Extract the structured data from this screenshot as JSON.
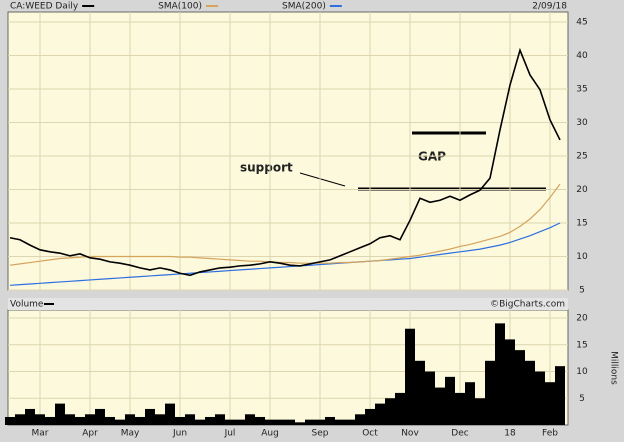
{
  "chart_data": {
    "type": "line",
    "date": "2/09/18",
    "credit": "©BigCharts.com",
    "annotations": [
      "support",
      "GAP"
    ],
    "categories": [
      null,
      null,
      null,
      "Mar",
      null,
      null,
      null,
      null,
      "Apr",
      null,
      null,
      null,
      "May",
      null,
      null,
      null,
      null,
      "Jun",
      null,
      null,
      null,
      null,
      "Jul",
      null,
      null,
      null,
      "Aug",
      null,
      null,
      null,
      null,
      "Sep",
      null,
      null,
      null,
      null,
      "Oct",
      null,
      null,
      null,
      "Nov",
      null,
      null,
      null,
      null,
      "Dec",
      null,
      null,
      null,
      null,
      "18",
      null,
      null,
      null,
      "Feb",
      null
    ],
    "ylim": [
      5,
      46.5
    ],
    "yticks": [
      5,
      10,
      15,
      20,
      25,
      30,
      35,
      40,
      45
    ],
    "grid": true,
    "series": [
      {
        "name": "CA:WEED Daily",
        "color": "#000000",
        "values": [
          12.8,
          12.5,
          11.7,
          11,
          10.7,
          10.5,
          10.1,
          10.4,
          9.8,
          9.6,
          9.2,
          9.0,
          8.7,
          8.3,
          8.0,
          8.3,
          8.0,
          7.5,
          7.2,
          7.7,
          8.0,
          8.3,
          8.4,
          8.6,
          8.7,
          8.9,
          9.2,
          9.0,
          8.7,
          8.6,
          8.9,
          9.2,
          9.5,
          10.1,
          10.7,
          11.3,
          11.9,
          12.8,
          13.1,
          12.5,
          15.4,
          18.7,
          18.1,
          18.4,
          19.0,
          18.4,
          19.2,
          19.9,
          21.7,
          28.9,
          35.6,
          40.8,
          37.1,
          34.9,
          30.4,
          27.4
        ]
      },
      {
        "name": "SMA(100)",
        "color": "#d4a35c",
        "values": [
          8.7,
          8.9,
          9.1,
          9.3,
          9.5,
          9.7,
          9.8,
          9.9,
          10,
          10,
          10,
          10,
          10,
          10,
          10,
          10,
          10,
          9.9,
          9.9,
          9.8,
          9.7,
          9.6,
          9.5,
          9.4,
          9.3,
          9.3,
          9.2,
          9.1,
          9.1,
          9.0,
          9.0,
          9.0,
          9.0,
          9.1,
          9.1,
          9.2,
          9.3,
          9.4,
          9.6,
          9.8,
          10,
          10.2,
          10.5,
          10.8,
          11.1,
          11.5,
          11.8,
          12.2,
          12.6,
          13,
          13.6,
          14.5,
          15.6,
          17,
          18.8,
          20.8
        ]
      },
      {
        "name": "SMA(200)",
        "color": "#2f6fe0",
        "values": [
          5.7,
          5.8,
          5.9,
          6.0,
          6.1,
          6.2,
          6.3,
          6.4,
          6.5,
          6.6,
          6.7,
          6.8,
          6.9,
          7.0,
          7.1,
          7.2,
          7.3,
          7.4,
          7.5,
          7.6,
          7.7,
          7.8,
          7.9,
          8.0,
          8.1,
          8.2,
          8.3,
          8.4,
          8.5,
          8.6,
          8.7,
          8.8,
          8.9,
          9.0,
          9.1,
          9.2,
          9.3,
          9.4,
          9.5,
          9.6,
          9.7,
          9.9,
          10.1,
          10.3,
          10.5,
          10.7,
          10.9,
          11.1,
          11.4,
          11.7,
          12.1,
          12.6,
          13.1,
          13.7,
          14.3,
          15
        ]
      }
    ],
    "volume": {
      "title": "Volume",
      "y_label": "Millions",
      "color": "#000000",
      "ylim": [
        0,
        21.5
      ],
      "yticks": [
        5,
        10,
        15,
        20
      ],
      "values": [
        1.5,
        2,
        3,
        2,
        1.5,
        4,
        2,
        1.5,
        2,
        3,
        1.5,
        1,
        2,
        1.5,
        3,
        2,
        4,
        1.5,
        2,
        1,
        1.5,
        2,
        1,
        1,
        2,
        1.5,
        1,
        1,
        1,
        0.5,
        1,
        1,
        1.5,
        1,
        1,
        2,
        3,
        4,
        5,
        6,
        18,
        12,
        10,
        7,
        9,
        6,
        8,
        5,
        12,
        19,
        16,
        14,
        12,
        10,
        8,
        11
      ]
    }
  }
}
